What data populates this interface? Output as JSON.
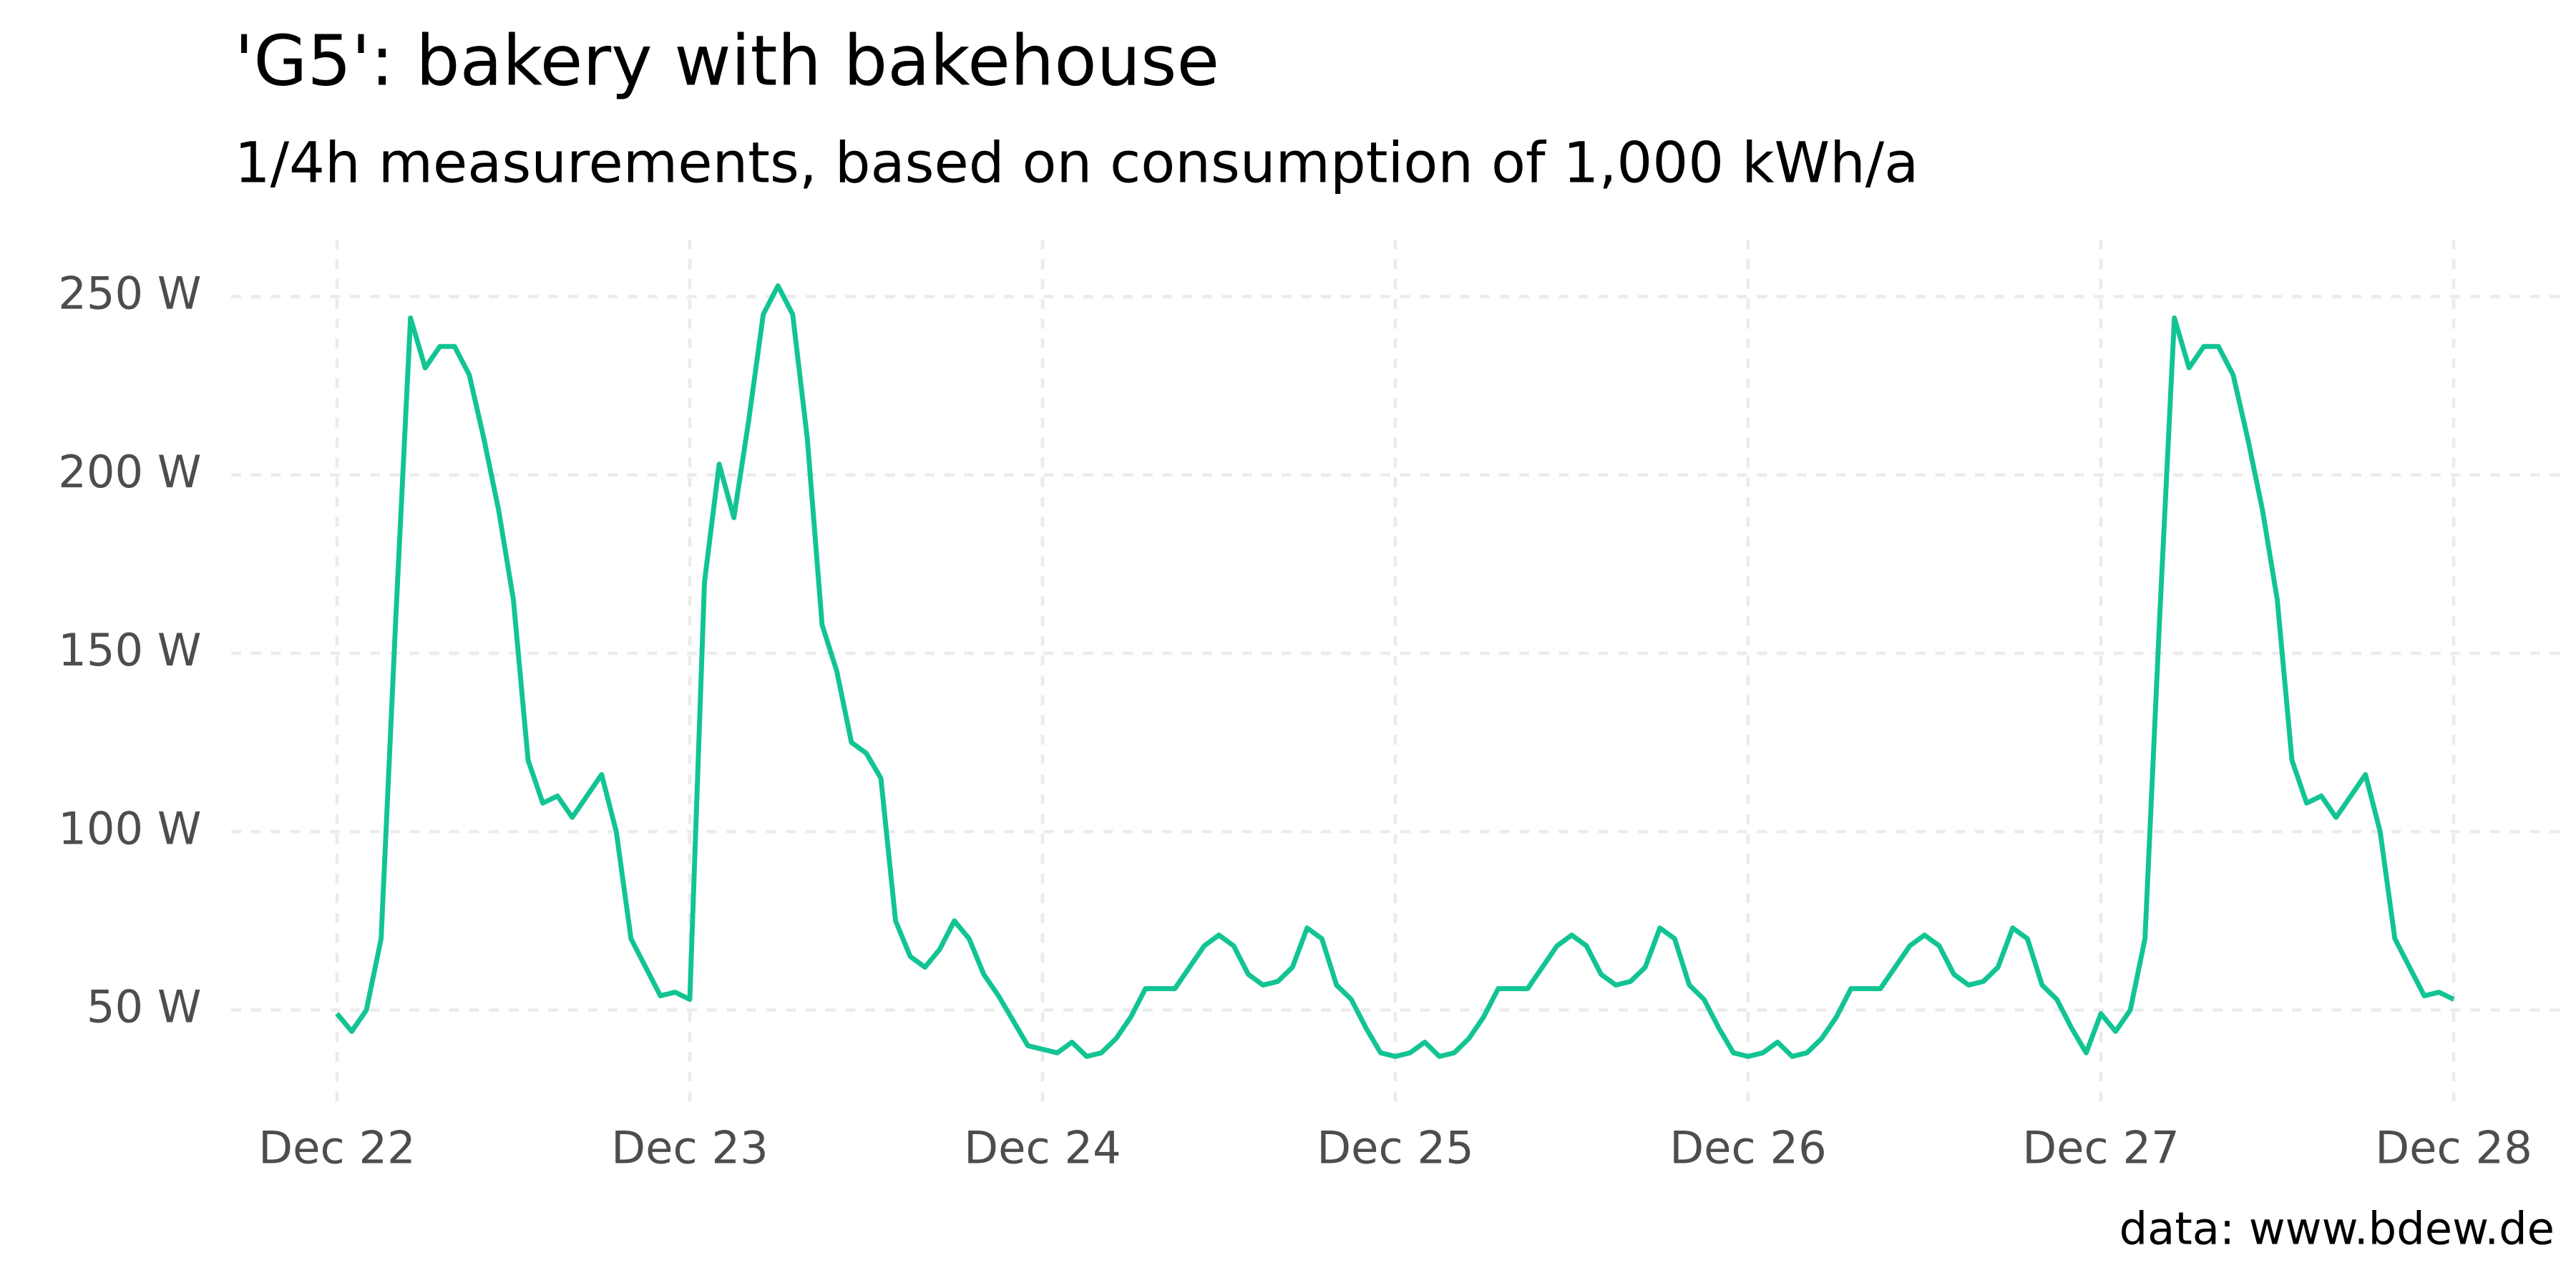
{
  "chart_data": {
    "type": "line",
    "title": "'G5': bakery with bakehouse",
    "subtitle": "1/4h measurements, based on consumption of 1,000 kWh/a",
    "caption": "data: www.bdew.de",
    "x": [
      0,
      1,
      2,
      3,
      4,
      5,
      6,
      7,
      8,
      9,
      10,
      11,
      12,
      13,
      14,
      15,
      16,
      17,
      18,
      19,
      20,
      21,
      22,
      23,
      24,
      25,
      26,
      27,
      28,
      29,
      30,
      31,
      32,
      33,
      34,
      35,
      36,
      37,
      38,
      39,
      40,
      41,
      42,
      43,
      44,
      45,
      46,
      47,
      48,
      49,
      50,
      51,
      52,
      53,
      54,
      55,
      56,
      57,
      58,
      59,
      60,
      61,
      62,
      63,
      64,
      65,
      66,
      67,
      68,
      69,
      70,
      71,
      72,
      73,
      74,
      75,
      76,
      77,
      78,
      79,
      80,
      81,
      82,
      83,
      84,
      85,
      86,
      87,
      88,
      89,
      90,
      91,
      92,
      93,
      94,
      95,
      96,
      97,
      98,
      99,
      100,
      101,
      102,
      103,
      104,
      105,
      106,
      107,
      108,
      109,
      110,
      111,
      112,
      113,
      114,
      115,
      116,
      117,
      118,
      119,
      120,
      121,
      122,
      123,
      124,
      125,
      126,
      127,
      128,
      129,
      130,
      131,
      132,
      133,
      134,
      135,
      136,
      137,
      138,
      139,
      140,
      141,
      142,
      143,
      144
    ],
    "series": [
      {
        "name": "G5",
        "color": "#12c493",
        "values": [
          49,
          44,
          50,
          70,
          160,
          244,
          230,
          236,
          236,
          228,
          210,
          190,
          165,
          120,
          108,
          110,
          104,
          110,
          116,
          100,
          70,
          62,
          54,
          55,
          53,
          170,
          203,
          188,
          215,
          245,
          253,
          245,
          210,
          158,
          145,
          125,
          122,
          115,
          75,
          65,
          62,
          67,
          75,
          70,
          60,
          54,
          47,
          40,
          39,
          38,
          41,
          37,
          38,
          42,
          48,
          56,
          56,
          56,
          62,
          68,
          71,
          68,
          60,
          57,
          58,
          62,
          73,
          70,
          57,
          53,
          45,
          38,
          37,
          38,
          41,
          37,
          38,
          42,
          48,
          56,
          56,
          56,
          62,
          68,
          71,
          68,
          60,
          57,
          58,
          62,
          73,
          70,
          57,
          53,
          45,
          38,
          37,
          38,
          41,
          37,
          38,
          42,
          48,
          56,
          56,
          56,
          62,
          68,
          71,
          68,
          60,
          57,
          58,
          62,
          73,
          70,
          57,
          53,
          45,
          38,
          49,
          44,
          50,
          70,
          160,
          244,
          230,
          236,
          236,
          228,
          210,
          190,
          165,
          120,
          108,
          110,
          104,
          110,
          116,
          100,
          70,
          62,
          54,
          55,
          53
        ]
      }
    ],
    "xlim": [
      -7.2,
      151.2
    ],
    "ylim": [
      23,
      266
    ],
    "xticks": [
      {
        "value": 0,
        "label": "Dec 22"
      },
      {
        "value": 24,
        "label": "Dec 23"
      },
      {
        "value": 48,
        "label": "Dec 24"
      },
      {
        "value": 72,
        "label": "Dec 25"
      },
      {
        "value": 96,
        "label": "Dec 26"
      },
      {
        "value": 120,
        "label": "Dec 27"
      },
      {
        "value": 144,
        "label": "Dec 28"
      }
    ],
    "yticks": [
      {
        "value": 50,
        "label": "50 W"
      },
      {
        "value": 100,
        "label": "100 W"
      },
      {
        "value": 150,
        "label": "150 W"
      },
      {
        "value": 200,
        "label": "200 W"
      },
      {
        "value": 250,
        "label": "250 W"
      }
    ],
    "grid": true
  }
}
